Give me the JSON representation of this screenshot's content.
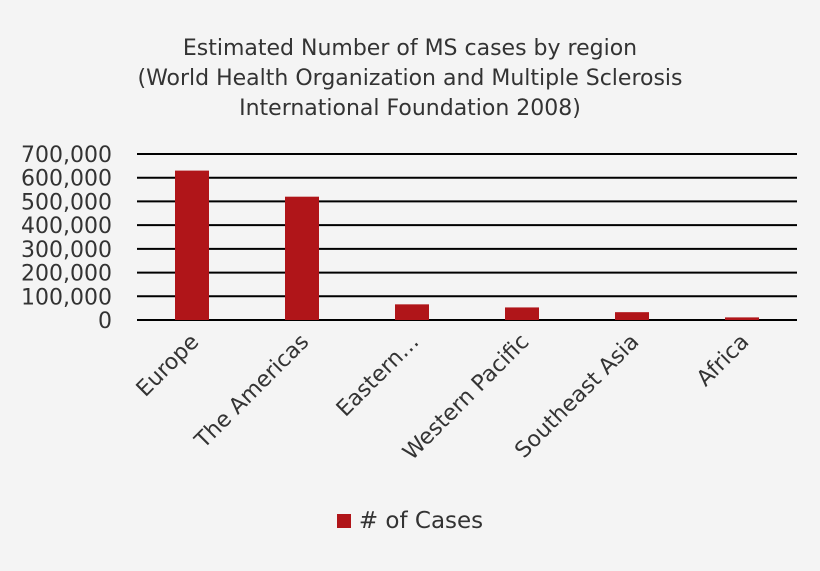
{
  "chart_data": {
    "type": "bar",
    "title_lines": [
      "Estimated Number of MS cases by region",
      "(World Health Organization and Multiple Sclerosis",
      "International Foundation 2008)"
    ],
    "categories": [
      "Europe",
      "The Americas",
      "Eastern…",
      "Western Pacific",
      "Southeast Asia",
      "Africa"
    ],
    "series": [
      {
        "name": "# of Cases",
        "values": [
          630000,
          520000,
          66000,
          53000,
          33000,
          11000
        ]
      }
    ],
    "ylim": [
      0,
      700000
    ],
    "yticks": [
      "0",
      "100,000",
      "200,000",
      "300,000",
      "400,000",
      "500,000",
      "600,000",
      "700,000"
    ],
    "ytick_values": [
      0,
      100000,
      200000,
      300000,
      400000,
      500000,
      600000,
      700000
    ],
    "grid": true,
    "legend_position": "bottom",
    "bar_color": "#b01519",
    "grid_color": "#000000",
    "text_color": "#333333"
  }
}
